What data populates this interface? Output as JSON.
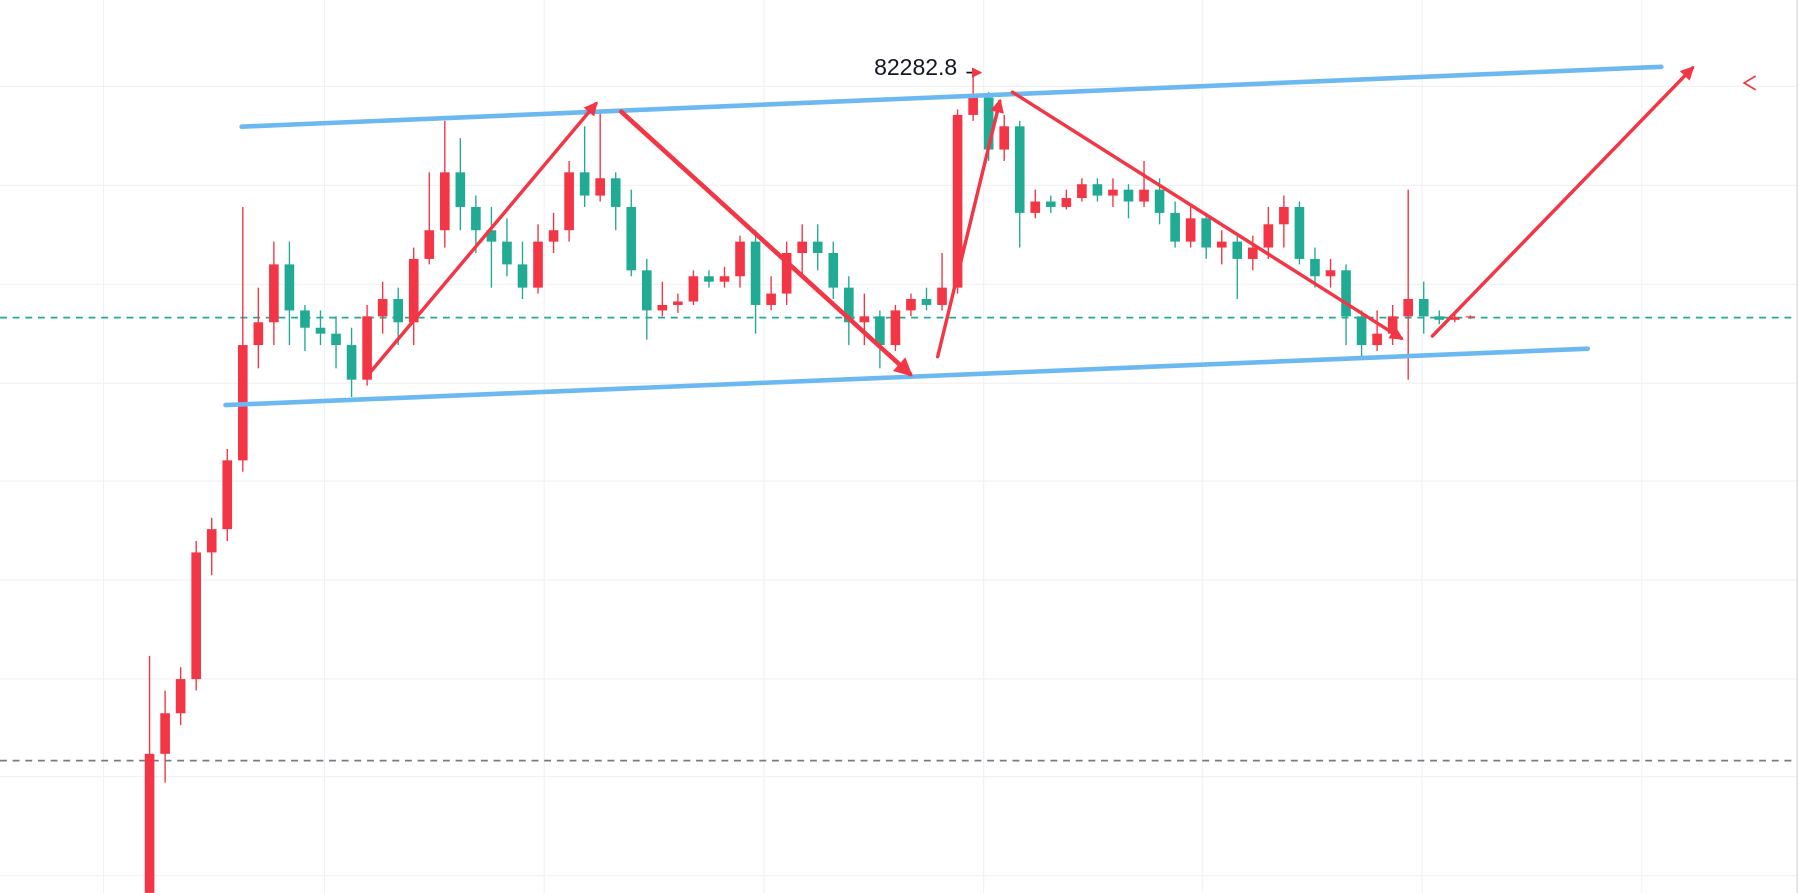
{
  "chart_data": {
    "type": "candlestick",
    "up_color": "#f23645",
    "down_color": "#22ab94",
    "ylim": [
      65700,
      83740
    ],
    "ohlc": [
      [
        65700,
        70490,
        65700,
        68510
      ],
      [
        68510,
        69790,
        67930,
        69330
      ],
      [
        69330,
        70260,
        69090,
        70020
      ],
      [
        70020,
        72810,
        69790,
        72580
      ],
      [
        72580,
        73280,
        72120,
        73050
      ],
      [
        73050,
        74670,
        72810,
        74440
      ],
      [
        74440,
        79560,
        74210,
        76770
      ],
      [
        76770,
        77930,
        76300,
        77230
      ],
      [
        77230,
        78860,
        76770,
        78400
      ],
      [
        78400,
        78860,
        76770,
        77470
      ],
      [
        77470,
        77580,
        76650,
        77120
      ],
      [
        77120,
        77470,
        76770,
        77000
      ],
      [
        77000,
        77350,
        76300,
        76770
      ],
      [
        76770,
        77120,
        75720,
        76070
      ],
      [
        76070,
        77580,
        75950,
        77350
      ],
      [
        77350,
        78050,
        77000,
        77700
      ],
      [
        77700,
        77930,
        76770,
        77230
      ],
      [
        77230,
        78740,
        76770,
        78510
      ],
      [
        78510,
        80260,
        78400,
        79090
      ],
      [
        79090,
        81300,
        78740,
        80260
      ],
      [
        80260,
        80950,
        79090,
        79560
      ],
      [
        79560,
        79790,
        78630,
        79090
      ],
      [
        79090,
        79560,
        77930,
        78860
      ],
      [
        78860,
        79330,
        78160,
        78400
      ],
      [
        78400,
        78860,
        77700,
        77930
      ],
      [
        77930,
        79210,
        77810,
        78860
      ],
      [
        78860,
        79440,
        78630,
        79090
      ],
      [
        79090,
        80490,
        78860,
        80260
      ],
      [
        80260,
        81190,
        79560,
        79790
      ],
      [
        79790,
        81530,
        79670,
        80140
      ],
      [
        80140,
        80260,
        79090,
        79560
      ],
      [
        79560,
        79910,
        78160,
        78280
      ],
      [
        78280,
        78510,
        76880,
        77470
      ],
      [
        77470,
        78050,
        77350,
        77580
      ],
      [
        77580,
        77810,
        77420,
        77650
      ],
      [
        77650,
        78280,
        77580,
        78160
      ],
      [
        78160,
        78280,
        77930,
        78050
      ],
      [
        78050,
        78350,
        77930,
        78160
      ],
      [
        78160,
        78980,
        77930,
        78860
      ],
      [
        78860,
        79090,
        77000,
        77580
      ],
      [
        77580,
        78160,
        77470,
        77810
      ],
      [
        77810,
        78860,
        77580,
        78630
      ],
      [
        78630,
        79210,
        78160,
        78860
      ],
      [
        78860,
        79210,
        78280,
        78630
      ],
      [
        78630,
        78860,
        77700,
        77930
      ],
      [
        77930,
        78160,
        76770,
        77230
      ],
      [
        77230,
        77810,
        76770,
        77350
      ],
      [
        77350,
        77470,
        76300,
        76770
      ],
      [
        76770,
        77580,
        76650,
        77470
      ],
      [
        77470,
        77810,
        77350,
        77700
      ],
      [
        77700,
        77930,
        77470,
        77580
      ],
      [
        77580,
        78630,
        77470,
        77930
      ],
      [
        77930,
        81530,
        77810,
        81420
      ],
      [
        81420,
        82282.8,
        81300,
        81770
      ],
      [
        81770,
        81880,
        80490,
        80720
      ],
      [
        80720,
        81420,
        80490,
        81190
      ],
      [
        81190,
        81300,
        78740,
        79440
      ],
      [
        79440,
        79910,
        79330,
        79670
      ],
      [
        79670,
        79790,
        79440,
        79560
      ],
      [
        79560,
        79910,
        79510,
        79740
      ],
      [
        79740,
        80140,
        79670,
        80020
      ],
      [
        80020,
        80140,
        79670,
        79790
      ],
      [
        79790,
        80140,
        79560,
        79910
      ],
      [
        79910,
        80020,
        79330,
        79670
      ],
      [
        79670,
        80490,
        79560,
        79910
      ],
      [
        79910,
        80140,
        79210,
        79440
      ],
      [
        79440,
        79670,
        78740,
        78860
      ],
      [
        78860,
        79560,
        78740,
        79330
      ],
      [
        79330,
        79440,
        78510,
        78740
      ],
      [
        78740,
        79090,
        78400,
        78860
      ],
      [
        78860,
        78980,
        77700,
        78510
      ],
      [
        78510,
        78980,
        78280,
        78740
      ],
      [
        78740,
        79560,
        78510,
        79210
      ],
      [
        79210,
        79790,
        78740,
        79560
      ],
      [
        79560,
        79670,
        78400,
        78510
      ],
      [
        78510,
        78740,
        77930,
        78160
      ],
      [
        78160,
        78510,
        77930,
        78280
      ],
      [
        78280,
        78400,
        76770,
        77350
      ],
      [
        77350,
        77470,
        76490,
        76770
      ],
      [
        76770,
        77470,
        76650,
        77000
      ],
      [
        77000,
        77580,
        76770,
        77350
      ],
      [
        77350,
        79910,
        76070,
        77700
      ],
      [
        77700,
        78050,
        77000,
        77350
      ],
      [
        77350,
        77470,
        77190,
        77280
      ],
      [
        77280,
        77420,
        77230,
        77330
      ],
      [
        77330,
        77370,
        77300,
        77350
      ]
    ]
  }
}
